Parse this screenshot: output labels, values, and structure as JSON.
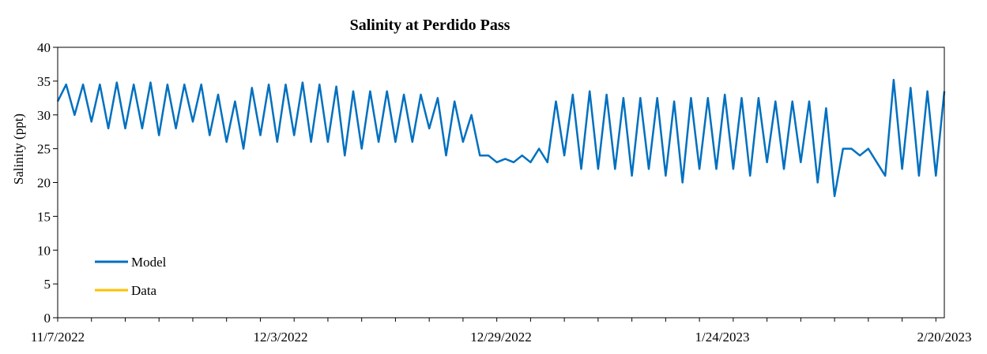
{
  "chart_data": {
    "type": "line",
    "title": "Salinity at Perdido Pass",
    "xlabel": "",
    "ylabel": "Salinity (ppt)",
    "ylim": [
      0,
      40
    ],
    "yticks": [
      "0",
      "5",
      "10",
      "15",
      "20",
      "25",
      "30",
      "35",
      "40"
    ],
    "xlim": [
      "2022-11-07",
      "2023-02-20"
    ],
    "xtick_labels": [
      "11/7/2022",
      "12/3/2022",
      "12/29/2022",
      "1/24/2023",
      "2/20/2023"
    ],
    "grid": false,
    "legend_position": "bottom-left",
    "series": [
      {
        "name": "Model",
        "color": "#0070C0",
        "points": [
          [
            "2022-11-07",
            32
          ],
          [
            "2022-11-08",
            34.5
          ],
          [
            "2022-11-09",
            30
          ],
          [
            "2022-11-10",
            34.5
          ],
          [
            "2022-11-11",
            29
          ],
          [
            "2022-11-12",
            34.5
          ],
          [
            "2022-11-13",
            28
          ],
          [
            "2022-11-14",
            34.8
          ],
          [
            "2022-11-15",
            28
          ],
          [
            "2022-11-16",
            34.5
          ],
          [
            "2022-11-17",
            28
          ],
          [
            "2022-11-18",
            34.8
          ],
          [
            "2022-11-19",
            27
          ],
          [
            "2022-11-20",
            34.5
          ],
          [
            "2022-11-21",
            28
          ],
          [
            "2022-11-22",
            34.5
          ],
          [
            "2022-11-23",
            29
          ],
          [
            "2022-11-24",
            34.5
          ],
          [
            "2022-11-25",
            27
          ],
          [
            "2022-11-26",
            33
          ],
          [
            "2022-11-27",
            26
          ],
          [
            "2022-11-28",
            32
          ],
          [
            "2022-11-29",
            25
          ],
          [
            "2022-11-30",
            34
          ],
          [
            "2022-12-01",
            27
          ],
          [
            "2022-12-02",
            34.5
          ],
          [
            "2022-12-03",
            26
          ],
          [
            "2022-12-04",
            34.5
          ],
          [
            "2022-12-05",
            27
          ],
          [
            "2022-12-06",
            34.8
          ],
          [
            "2022-12-07",
            26
          ],
          [
            "2022-12-08",
            34.5
          ],
          [
            "2022-12-09",
            26
          ],
          [
            "2022-12-10",
            34.2
          ],
          [
            "2022-12-11",
            24
          ],
          [
            "2022-12-12",
            33.5
          ],
          [
            "2022-12-13",
            25
          ],
          [
            "2022-12-14",
            33.5
          ],
          [
            "2022-12-15",
            26
          ],
          [
            "2022-12-16",
            33.5
          ],
          [
            "2022-12-17",
            26
          ],
          [
            "2022-12-18",
            33
          ],
          [
            "2022-12-19",
            26
          ],
          [
            "2022-12-20",
            33
          ],
          [
            "2022-12-21",
            28
          ],
          [
            "2022-12-22",
            32.5
          ],
          [
            "2022-12-23",
            24
          ],
          [
            "2022-12-24",
            32
          ],
          [
            "2022-12-25",
            26
          ],
          [
            "2022-12-26",
            30
          ],
          [
            "2022-12-27",
            24
          ],
          [
            "2022-12-28",
            24
          ],
          [
            "2022-12-29",
            23
          ],
          [
            "2022-12-30",
            23.5
          ],
          [
            "2022-12-31",
            23
          ],
          [
            "2023-01-01",
            24
          ],
          [
            "2023-01-02",
            23
          ],
          [
            "2023-01-03",
            25
          ],
          [
            "2023-01-04",
            23
          ],
          [
            "2023-01-05",
            32
          ],
          [
            "2023-01-06",
            24
          ],
          [
            "2023-01-07",
            33
          ],
          [
            "2023-01-08",
            22
          ],
          [
            "2023-01-09",
            33.5
          ],
          [
            "2023-01-10",
            22
          ],
          [
            "2023-01-11",
            33
          ],
          [
            "2023-01-12",
            22
          ],
          [
            "2023-01-13",
            32.5
          ],
          [
            "2023-01-14",
            21
          ],
          [
            "2023-01-15",
            32.5
          ],
          [
            "2023-01-16",
            22
          ],
          [
            "2023-01-17",
            32.5
          ],
          [
            "2023-01-18",
            21
          ],
          [
            "2023-01-19",
            32
          ],
          [
            "2023-01-20",
            20
          ],
          [
            "2023-01-21",
            32.5
          ],
          [
            "2023-01-22",
            22
          ],
          [
            "2023-01-23",
            32.5
          ],
          [
            "2023-01-24",
            22
          ],
          [
            "2023-01-25",
            33
          ],
          [
            "2023-01-26",
            22
          ],
          [
            "2023-01-27",
            32.5
          ],
          [
            "2023-01-28",
            21
          ],
          [
            "2023-01-29",
            32.5
          ],
          [
            "2023-01-30",
            23
          ],
          [
            "2023-01-31",
            32
          ],
          [
            "2023-02-01",
            22
          ],
          [
            "2023-02-02",
            32
          ],
          [
            "2023-02-03",
            23
          ],
          [
            "2023-02-04",
            32
          ],
          [
            "2023-02-05",
            20
          ],
          [
            "2023-02-06",
            31
          ],
          [
            "2023-02-07",
            18
          ],
          [
            "2023-02-08",
            25
          ],
          [
            "2023-02-09",
            25
          ],
          [
            "2023-02-10",
            24
          ],
          [
            "2023-02-11",
            25
          ],
          [
            "2023-02-12",
            23
          ],
          [
            "2023-02-13",
            21
          ],
          [
            "2023-02-14",
            35.2
          ],
          [
            "2023-02-15",
            22
          ],
          [
            "2023-02-16",
            34
          ],
          [
            "2023-02-17",
            21
          ],
          [
            "2023-02-18",
            33.5
          ],
          [
            "2023-02-19",
            21
          ],
          [
            "2023-02-20",
            33.5
          ]
        ]
      },
      {
        "name": "Data",
        "color": "#FFC000",
        "points": []
      }
    ]
  },
  "legend": {
    "items": [
      {
        "label": "Model",
        "color": "#0070C0"
      },
      {
        "label": "Data",
        "color": "#FFC000"
      }
    ]
  }
}
